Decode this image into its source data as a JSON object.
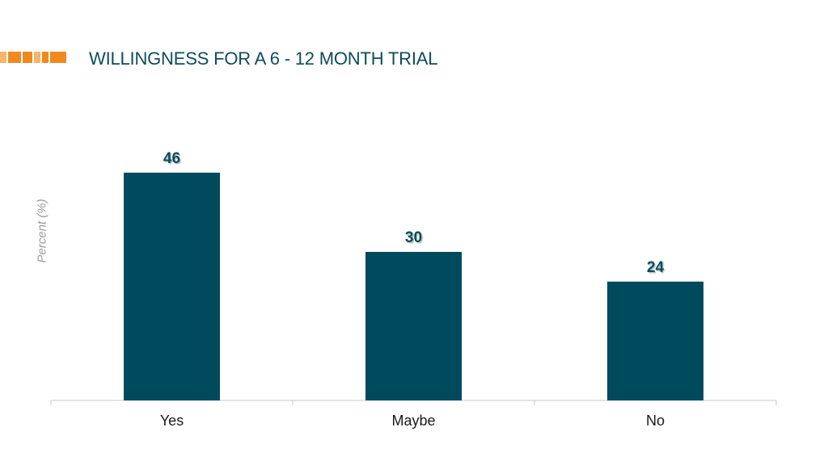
{
  "page": {
    "title": "WILLINGNESS FOR  A  6 - 12 MONTH TRIAL"
  },
  "colors": {
    "bar": "#004a5e",
    "title": "#0f4c5c",
    "accent_orange": "#f08a1e",
    "accent_light": "#f6b56b"
  },
  "chart_data": {
    "type": "bar",
    "categories": [
      "Yes",
      "Maybe",
      "No"
    ],
    "values": [
      46,
      30,
      24
    ],
    "ylabel": "Percent (%)",
    "xlabel": "",
    "ylim": [
      0,
      60
    ],
    "grid": false,
    "data_labels": true
  }
}
